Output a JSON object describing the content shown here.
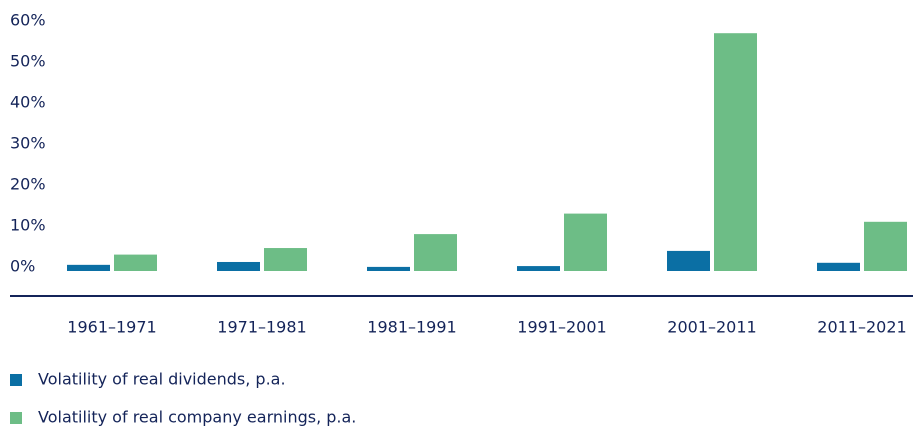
{
  "chart_data": {
    "type": "bar",
    "categories": [
      "1961–1971",
      "1971–1981",
      "1981–1991",
      "1991–2001",
      "2001–2011",
      "2011–2021"
    ],
    "series": [
      {
        "name": "Volatility of real dividends, p.a.",
        "color": "#0b6fa4",
        "values": [
          1.5,
          2.2,
          1.0,
          1.2,
          4.9,
          2.0
        ]
      },
      {
        "name": "Volatility of real company earnings, p.a.",
        "color": "#6dbd86",
        "values": [
          4,
          5.6,
          9,
          14,
          58,
          12
        ]
      }
    ],
    "ylim": [
      0,
      60
    ],
    "yticks": [
      {
        "value": 0,
        "label": "0%"
      },
      {
        "value": 10,
        "label": "10%"
      },
      {
        "value": 20,
        "label": "20%"
      },
      {
        "value": 30,
        "label": "30%"
      },
      {
        "value": 40,
        "label": "40%"
      },
      {
        "value": 50,
        "label": "50%"
      },
      {
        "value": 60,
        "label": "60%"
      }
    ],
    "grid": false
  }
}
